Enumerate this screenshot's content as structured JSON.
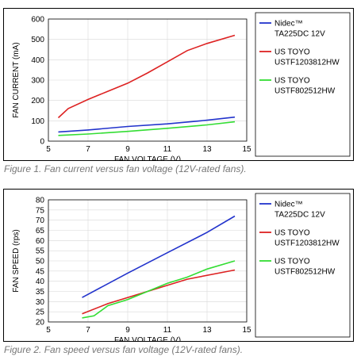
{
  "chart_data": [
    {
      "type": "line",
      "xlabel": "FAN VOLTAGE (V)",
      "ylabel": "FAN CURRENT (mA)",
      "xlim": [
        5,
        15
      ],
      "ylim": [
        0,
        600
      ],
      "xticks": [
        5,
        7,
        9,
        11,
        13,
        15
      ],
      "yticks": [
        0,
        100,
        200,
        300,
        400,
        500,
        600
      ],
      "grid": true,
      "legend_position": "right",
      "series": [
        {
          "name": "Nidec™ TA225DC 12V",
          "label_lines": [
            "Nidec™",
            "TA225DC 12V"
          ],
          "color": "#2233cc",
          "x": [
            5.5,
            7,
            9,
            11,
            13,
            14.4
          ],
          "y": [
            45,
            55,
            72,
            85,
            103,
            118
          ]
        },
        {
          "name": "US TOYO USTF1203812HW",
          "label_lines": [
            "US TOYO",
            "USTF1203812HW"
          ],
          "color": "#dd2222",
          "x": [
            5.5,
            6,
            7,
            8,
            9,
            10,
            11,
            12,
            13,
            14.4
          ],
          "y": [
            115,
            160,
            205,
            245,
            285,
            335,
            390,
            445,
            480,
            520
          ]
        },
        {
          "name": "US TOYO USTF802512HW",
          "label_lines": [
            "US TOYO",
            "USTF802512HW"
          ],
          "color": "#33dd33",
          "x": [
            5.5,
            7,
            9,
            11,
            13,
            14.4
          ],
          "y": [
            28,
            35,
            48,
            63,
            80,
            95
          ]
        }
      ]
    },
    {
      "type": "line",
      "xlabel": "FAN VOLTAGE (V)",
      "ylabel": "FAN SPEED (rps)",
      "xlim": [
        5,
        15
      ],
      "ylim": [
        20,
        80
      ],
      "xticks": [
        5,
        7,
        9,
        11,
        13,
        15
      ],
      "yticks": [
        20,
        25,
        30,
        35,
        40,
        45,
        50,
        55,
        60,
        65,
        70,
        75,
        80
      ],
      "grid": true,
      "legend_position": "right",
      "series": [
        {
          "name": "Nidec™ TA225DC 12V",
          "label_lines": [
            "Nidec™",
            "TA225DC 12V"
          ],
          "color": "#2233cc",
          "x": [
            6.7,
            9,
            11,
            13,
            14.4
          ],
          "y": [
            32,
            44,
            54,
            64,
            72
          ]
        },
        {
          "name": "US TOYO USTF1203812HW",
          "label_lines": [
            "US TOYO",
            "USTF1203812HW"
          ],
          "color": "#dd2222",
          "x": [
            6.7,
            8,
            10,
            12,
            14.4
          ],
          "y": [
            24,
            29,
            35,
            41,
            45.5
          ]
        },
        {
          "name": "US TOYO USTF802512HW",
          "label_lines": [
            "US TOYO",
            "USTF802512HW"
          ],
          "color": "#33dd33",
          "x": [
            6.7,
            7.3,
            8,
            9,
            10,
            11,
            12,
            13,
            14.4
          ],
          "y": [
            22,
            23,
            28,
            31,
            35,
            39,
            42,
            46,
            50
          ]
        }
      ]
    }
  ],
  "captions": {
    "fig1": "Figure 1. Fan current versus fan voltage (12V-rated fans).",
    "fig2": "Figure 2. Fan speed versus fan voltage (12V-rated fans)."
  }
}
